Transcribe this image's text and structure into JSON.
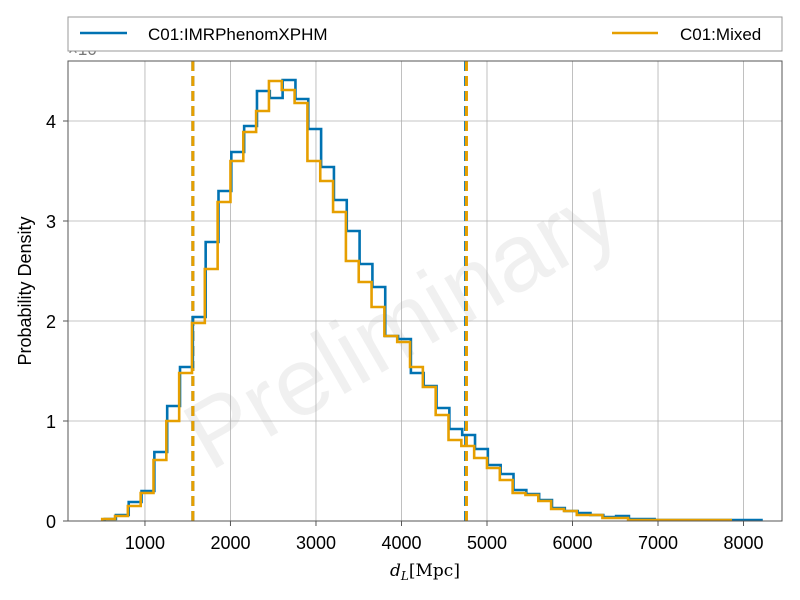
{
  "chart_data": {
    "type": "histogram-step",
    "xlabel": "d_L [Mpc]",
    "ylabel": "Probability Density",
    "y_offset_text": "×10^−4",
    "watermark": "Preliminary",
    "xlim": [
      100,
      8450
    ],
    "ylim": [
      0,
      4.6
    ],
    "y_scale_note": "values in units of 1e-4",
    "x_ticks": [
      1000,
      2000,
      3000,
      4000,
      5000,
      6000,
      7000,
      8000
    ],
    "y_ticks": [
      0,
      1,
      2,
      3,
      4
    ],
    "grid": true,
    "legend_position": "top",
    "series": [
      {
        "name": "C01:IMRPhenomXPHM",
        "color": "#0072b2",
        "edges": [
          530,
          660,
          810,
          960,
          1110,
          1260,
          1410,
          1560,
          1710,
          1860,
          2010,
          2160,
          2310,
          2460,
          2610,
          2760,
          2910,
          3060,
          3210,
          3360,
          3510,
          3660,
          3810,
          3960,
          4110,
          4260,
          4410,
          4560,
          4710,
          4860,
          5010,
          5160,
          5310,
          5460,
          5610,
          5760,
          5910,
          6060,
          6210,
          6360,
          6510,
          6660,
          6810,
          6960,
          7110,
          7260,
          7410,
          7560,
          7710,
          7860,
          8010,
          8210
        ],
        "values": [
          0.02,
          0.06,
          0.19,
          0.3,
          0.69,
          1.15,
          1.54,
          2.04,
          2.79,
          3.3,
          3.69,
          3.95,
          4.3,
          4.23,
          4.41,
          4.22,
          3.92,
          3.54,
          3.21,
          2.9,
          2.57,
          2.34,
          1.85,
          1.82,
          1.48,
          1.35,
          1.13,
          0.92,
          0.86,
          0.72,
          0.56,
          0.47,
          0.31,
          0.27,
          0.21,
          0.13,
          0.1,
          0.08,
          0.06,
          0.04,
          0.05,
          0.02,
          0.02,
          0.01,
          0.01,
          0.01,
          0.01,
          0.01,
          0.01,
          0.01,
          0.01
        ]
      },
      {
        "name": "C01:Mixed",
        "color": "#e69f00",
        "edges": [
          500,
          650,
          800,
          950,
          1100,
          1250,
          1400,
          1550,
          1700,
          1850,
          2000,
          2150,
          2300,
          2450,
          2600,
          2750,
          2900,
          3050,
          3200,
          3350,
          3500,
          3650,
          3800,
          3950,
          4100,
          4250,
          4400,
          4550,
          4700,
          4850,
          5000,
          5150,
          5300,
          5450,
          5600,
          5750,
          5900,
          6050,
          6200,
          6350,
          6500,
          6650,
          6800,
          6950,
          7100,
          7250,
          7400,
          7550,
          7700,
          7850
        ],
        "values": [
          0.02,
          0.05,
          0.15,
          0.28,
          0.61,
          1.0,
          1.48,
          1.98,
          2.52,
          3.19,
          3.6,
          3.89,
          4.1,
          4.4,
          4.31,
          4.18,
          3.6,
          3.4,
          3.09,
          2.6,
          2.39,
          2.14,
          1.85,
          1.79,
          1.54,
          1.34,
          1.06,
          0.81,
          0.75,
          0.63,
          0.53,
          0.41,
          0.28,
          0.26,
          0.2,
          0.12,
          0.1,
          0.06,
          0.06,
          0.03,
          0.03,
          0.01,
          0.01,
          0.01,
          0.01,
          0.01,
          0.01,
          0.01,
          0.01
        ]
      }
    ],
    "credible_interval_lines": [
      {
        "series": "C01:IMRPhenomXPHM",
        "x": 1560,
        "color": "#0072b2"
      },
      {
        "series": "C01:IMRPhenomXPHM",
        "x": 4750,
        "color": "#0072b2"
      },
      {
        "series": "C01:Mixed",
        "x": 1560,
        "color": "#e69f00"
      },
      {
        "series": "C01:Mixed",
        "x": 4760,
        "color": "#e69f00"
      }
    ]
  }
}
